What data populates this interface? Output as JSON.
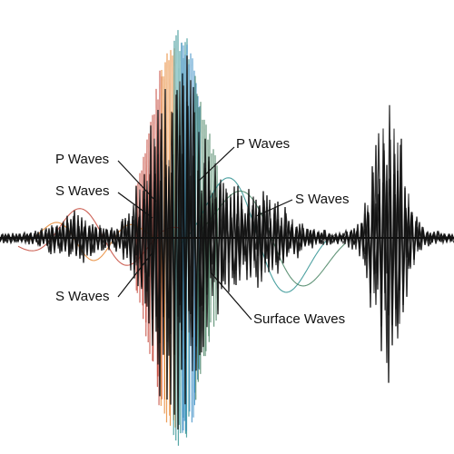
{
  "labels": {
    "p_waves_left": "P Waves",
    "s_waves_left_upper": "S Waves",
    "s_waves_left_lower": "S Waves",
    "p_waves_right": "P Waves",
    "s_waves_right": "S Waves",
    "surface_waves": "Surface Waves"
  },
  "colors": {
    "background": "#ffffff",
    "trace_primary": "#111111",
    "accent_red": "#c0392b",
    "accent_orange": "#e67e22",
    "accent_teal": "#1f8a8a",
    "accent_blue": "#2e86c1",
    "accent_green": "#3b7a57",
    "leader_line": "#111111"
  }
}
